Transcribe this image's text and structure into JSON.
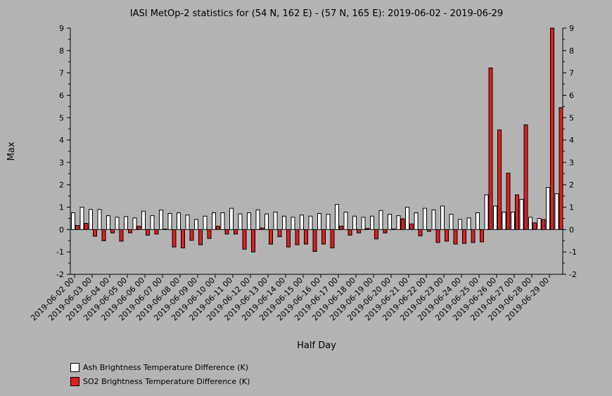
{
  "chart_data": {
    "type": "bar",
    "title": "IASI MetOp-2 statistics for (54 N, 162 E) - (57 N, 165 E): 2019-06-02 - 2019-06-29",
    "xlabel": "Half Day",
    "ylabel": "Max",
    "ylim": [
      -2,
      9
    ],
    "yticks": [
      -2,
      -1,
      0,
      1,
      2,
      3,
      4,
      5,
      6,
      7,
      8,
      9
    ],
    "xtick_labels": [
      "2019-06-02 00",
      "2019-06-03 00",
      "2019-06-04 00",
      "2019-06-05 00",
      "2019-06-06 00",
      "2019-06-07 00",
      "2019-06-08 00",
      "2019-06-09 00",
      "2019-06-10 00",
      "2019-06-11 00",
      "2019-06-12 00",
      "2019-06-13 00",
      "2019-06-14 00",
      "2019-06-15 00",
      "2019-06-16 00",
      "2019-06-17 00",
      "2019-06-18 00",
      "2019-06-19 00",
      "2019-06-20 00",
      "2019-06-21 00",
      "2019-06-22 00",
      "2019-06-23 00",
      "2019-06-24 00",
      "2019-06-25 00",
      "2019-06-26 00",
      "2019-06-27 00",
      "2019-06-28 00",
      "2019-06-29 00"
    ],
    "legend_position": "bottom-left",
    "series": [
      {
        "name": "Ash Brightness Temperature Difference (K)",
        "color": "#ffffff",
        "values": [
          0.75,
          1.0,
          0.9,
          0.9,
          0.62,
          0.55,
          0.58,
          0.52,
          0.82,
          0.62,
          0.87,
          0.72,
          0.75,
          0.65,
          0.45,
          0.6,
          0.75,
          0.75,
          0.95,
          0.7,
          0.75,
          0.88,
          0.7,
          0.78,
          0.6,
          0.55,
          0.65,
          0.6,
          0.72,
          0.68,
          1.12,
          0.78,
          0.6,
          0.55,
          0.6,
          0.85,
          0.68,
          0.62,
          1.0,
          0.75,
          0.95,
          0.88,
          1.05,
          0.68,
          0.45,
          0.52,
          0.75,
          1.55,
          1.05,
          0.78,
          0.78,
          1.35,
          0.55,
          0.5,
          1.88,
          1.6
        ]
      },
      {
        "name": "SO2 Brightness Temperature Difference (K)",
        "color": "#e02020",
        "values": [
          0.18,
          0.28,
          -0.3,
          -0.5,
          -0.15,
          -0.52,
          -0.15,
          0.15,
          -0.25,
          -0.2,
          0.02,
          -0.78,
          -0.82,
          -0.48,
          -0.68,
          -0.4,
          0.15,
          -0.2,
          -0.2,
          -0.88,
          -1.0,
          0.07,
          -0.65,
          -0.32,
          -0.78,
          -0.68,
          -0.65,
          -0.98,
          -0.65,
          -0.82,
          0.15,
          -0.25,
          -0.15,
          0.05,
          -0.42,
          -0.15,
          0.02,
          0.48,
          0.25,
          -0.28,
          -0.08,
          -0.58,
          -0.52,
          -0.65,
          -0.62,
          -0.58,
          -0.55,
          7.22,
          4.45,
          2.52,
          1.55,
          4.68,
          0.3,
          0.45,
          9.0,
          5.45
        ]
      }
    ]
  }
}
